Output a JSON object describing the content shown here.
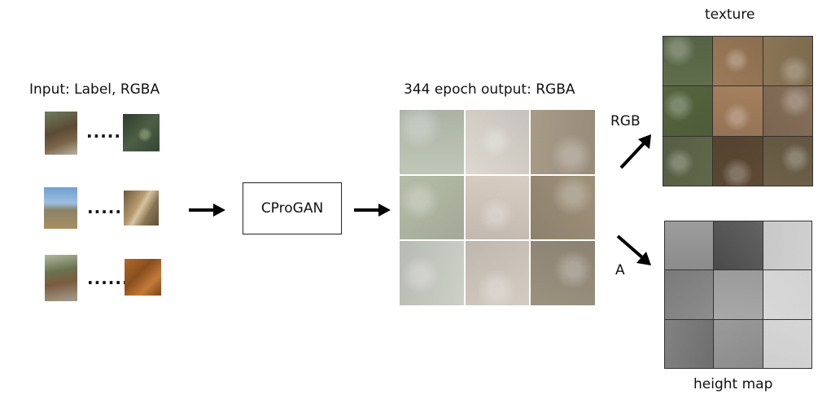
{
  "input": {
    "title": "Input: Label, RGBA",
    "rows": [
      {
        "dots": "......"
      },
      {
        "dots": "......"
      },
      {
        "dots": "......"
      }
    ]
  },
  "model": {
    "label": "CProGAN"
  },
  "output": {
    "title": "344 epoch output: RGBA",
    "cells": [
      "#bfc7b8",
      "#ddd8d0",
      "#a89b88",
      "#b5bca7",
      "#d8cdc2",
      "#9e9078",
      "#cdd0c7",
      "#d4ccc2",
      "#9b917f"
    ]
  },
  "branches": {
    "rgb_label": "RGB",
    "a_label": "A"
  },
  "texture": {
    "title": "texture",
    "cells": [
      "#5f6e4c",
      "#9b7a58",
      "#8a7656",
      "#56663f",
      "#a5805e",
      "#87705a",
      "#60684a",
      "#5e4a34",
      "#6e6148"
    ]
  },
  "heightmap": {
    "title": "height map",
    "cells": [
      "#8c8c8c",
      "#4a4a4a",
      "#c8c8c8",
      "#7a7a7a",
      "#9a9a9a",
      "#d2d2d2",
      "#6e6e6e",
      "#8a8a8a",
      "#cfcfcf"
    ]
  },
  "thumbnails": {
    "photos": [
      "#6b6250",
      "#7d8a6a",
      "#8a7a5a"
    ],
    "terrain": [
      "#3d4f3a",
      "#8a7050",
      "#9a5a22"
    ]
  }
}
